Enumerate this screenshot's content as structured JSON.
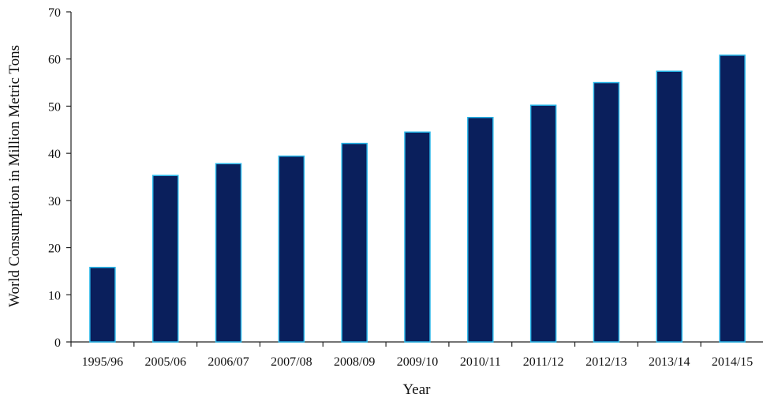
{
  "chart_data": {
    "type": "bar",
    "title": "",
    "xlabel": "Year",
    "ylabel": "World Consumption in Million Metric Tons",
    "categories": [
      "1995/96",
      "2005/06",
      "2006/07",
      "2007/08",
      "2008/09",
      "2009/10",
      "2010/11",
      "2011/12",
      "2012/13",
      "2013/14",
      "2014/15"
    ],
    "values": [
      15.8,
      35.3,
      37.8,
      39.4,
      42.1,
      44.5,
      47.6,
      50.2,
      55.0,
      57.4,
      60.8
    ],
    "ylim": [
      0,
      70
    ],
    "yticks": [
      0,
      10,
      20,
      30,
      40,
      50,
      60,
      70
    ],
    "grid": false,
    "legend": "none",
    "colors": {
      "bar_fill": "#0a1f5c",
      "bar_edge": "#29b6e8",
      "axis": "#222222"
    }
  }
}
